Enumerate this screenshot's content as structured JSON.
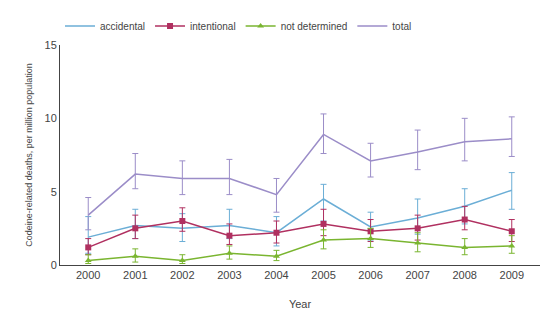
{
  "chart_data": {
    "type": "line",
    "x": [
      2000,
      2001,
      2002,
      2003,
      2004,
      2005,
      2006,
      2007,
      2008,
      2009
    ],
    "xlabel": "Year",
    "ylabel": "Codeine-related deaths, per million population",
    "xlim": [
      1999.4,
      2009.6
    ],
    "xticks": [
      2000,
      2001,
      2002,
      2003,
      2004,
      2005,
      2006,
      2007,
      2008,
      2009
    ],
    "ylim": [
      0,
      15
    ],
    "yticks": [
      0,
      5,
      10,
      15
    ],
    "grid": false,
    "legend": "upper left",
    "series": [
      {
        "name": "accidental",
        "color": "#6baed6",
        "marker": "none",
        "values": [
          1.9,
          2.7,
          2.5,
          2.7,
          2.2,
          4.5,
          2.6,
          3.2,
          4.0,
          5.1
        ],
        "lo": [
          0.8,
          1.8,
          1.6,
          1.8,
          1.3,
          3.0,
          1.7,
          2.1,
          2.8,
          3.8
        ],
        "hi": [
          3.3,
          3.8,
          3.5,
          3.8,
          3.3,
          5.5,
          3.6,
          4.5,
          5.2,
          6.3
        ]
      },
      {
        "name": "intentional",
        "color": "#b03060",
        "marker": "square",
        "values": [
          1.2,
          2.5,
          3.0,
          2.0,
          2.2,
          2.8,
          2.3,
          2.5,
          3.1,
          2.3
        ],
        "lo": [
          0.7,
          1.8,
          2.3,
          1.4,
          1.5,
          2.0,
          1.6,
          1.7,
          2.4,
          1.6
        ],
        "hi": [
          1.8,
          3.4,
          3.9,
          2.8,
          3.0,
          3.8,
          3.1,
          3.4,
          4.0,
          3.1
        ]
      },
      {
        "name": "not determined",
        "color": "#7ab530",
        "marker": "triangle-up",
        "values": [
          0.3,
          0.6,
          0.3,
          0.8,
          0.6,
          1.7,
          1.8,
          1.5,
          1.2,
          1.3
        ],
        "lo": [
          0.1,
          0.2,
          0.1,
          0.4,
          0.3,
          1.1,
          1.2,
          0.9,
          0.7,
          0.8
        ],
        "hi": [
          0.7,
          1.1,
          0.7,
          1.3,
          1.0,
          2.4,
          2.5,
          2.2,
          1.8,
          2.0
        ]
      },
      {
        "name": "total",
        "color": "#9b8dc8",
        "marker": "none",
        "values": [
          3.4,
          6.2,
          5.9,
          5.9,
          4.8,
          8.9,
          7.1,
          7.7,
          8.4,
          8.6
        ],
        "lo": [
          2.4,
          5.2,
          4.8,
          4.8,
          3.6,
          7.6,
          6.0,
          6.5,
          7.1,
          7.4
        ],
        "hi": [
          4.6,
          7.6,
          7.1,
          7.2,
          5.9,
          10.3,
          8.3,
          9.2,
          10.0,
          10.1
        ]
      }
    ]
  }
}
